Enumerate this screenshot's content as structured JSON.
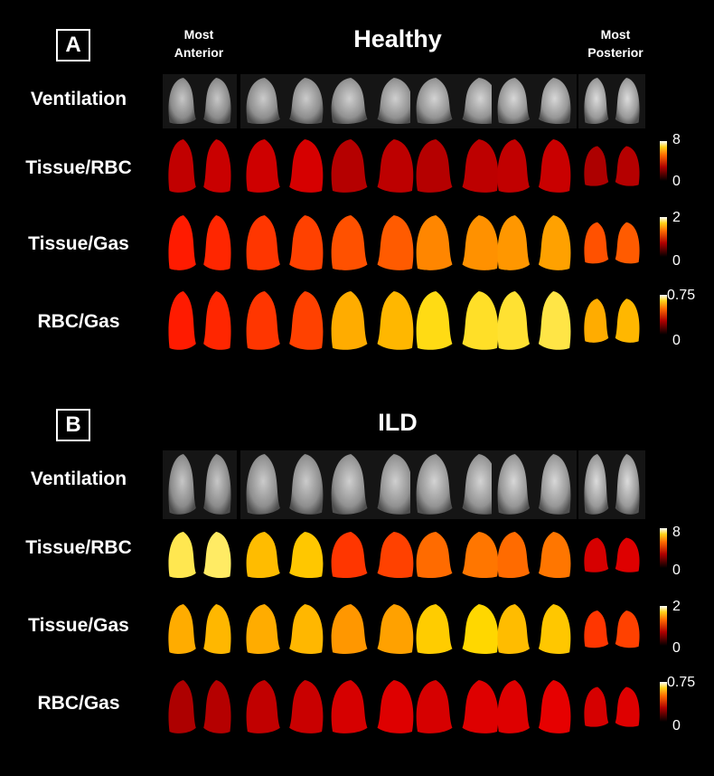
{
  "panels": [
    {
      "label": "A",
      "title": "Healthy",
      "orientation": {
        "left": [
          "Most",
          "Anterior"
        ],
        "right": [
          "Most",
          "Posterior"
        ]
      },
      "rows": [
        {
          "label": "Ventilation",
          "type": "gray"
        },
        {
          "label": "Tissue/RBC",
          "type": "heat",
          "levels": [
            0.25,
            0.28,
            0.22,
            0.22,
            0.25,
            0.2
          ],
          "scale": [
            "8",
            "0"
          ]
        },
        {
          "label": "Tissue/Gas",
          "type": "heat",
          "levels": [
            0.45,
            0.5,
            0.55,
            0.65,
            0.68,
            0.55
          ],
          "scale": [
            "2",
            "0"
          ]
        },
        {
          "label": "RBC/Gas",
          "type": "heat",
          "levels": [
            0.45,
            0.5,
            0.72,
            0.82,
            0.85,
            0.72
          ],
          "scale": [
            "0.75",
            "0"
          ]
        }
      ]
    },
    {
      "label": "B",
      "title": "ILD",
      "orientation": null,
      "rows": [
        {
          "label": "Ventilation",
          "type": "gray"
        },
        {
          "label": "Tissue/RBC",
          "type": "heat",
          "levels": [
            0.88,
            0.75,
            0.5,
            0.6,
            0.6,
            0.3
          ],
          "scale": [
            "8",
            "0"
          ]
        },
        {
          "label": "Tissue/Gas",
          "type": "heat",
          "levels": [
            0.72,
            0.72,
            0.68,
            0.78,
            0.75,
            0.5
          ],
          "scale": [
            "2",
            "0"
          ]
        },
        {
          "label": "RBC/Gas",
          "type": "heat",
          "levels": [
            0.2,
            0.25,
            0.3,
            0.3,
            0.32,
            0.3
          ],
          "scale": [
            "0.75",
            "0"
          ]
        }
      ]
    }
  ],
  "colors": {
    "background": "#000000",
    "text": "#ffffff"
  },
  "colormap": "hot"
}
